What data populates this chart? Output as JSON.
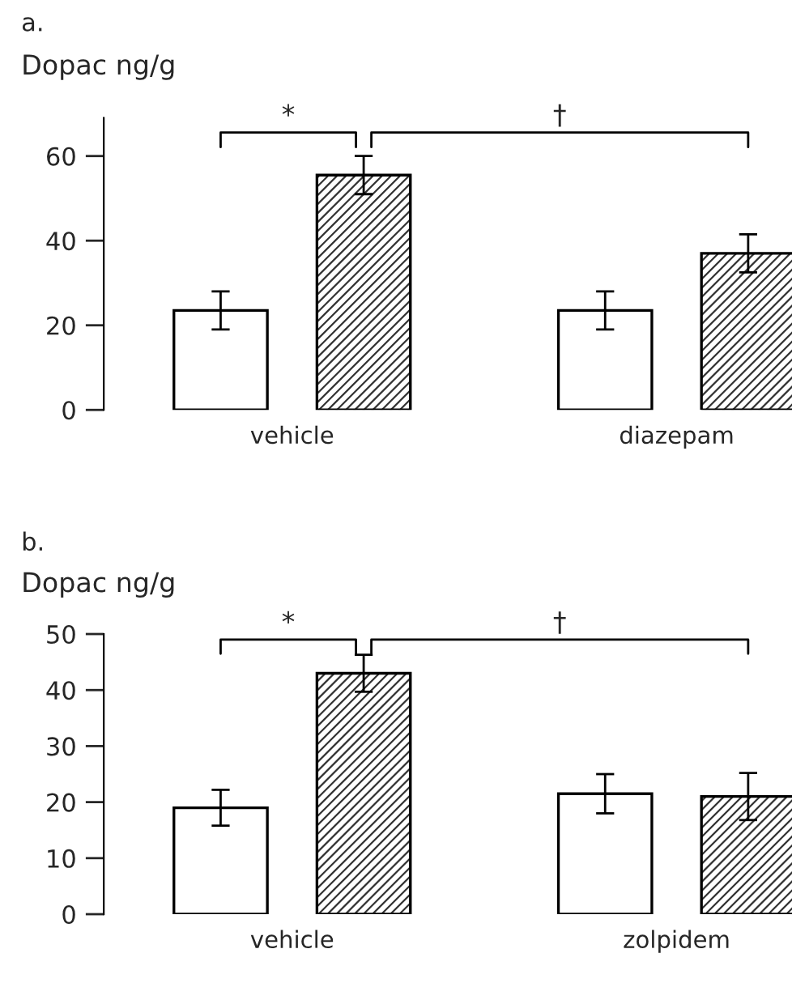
{
  "chart_data": [
    {
      "type": "bar",
      "title": "a.",
      "ylabel": "Dopac ng/g",
      "categories": [
        "vehicle",
        "diazepam"
      ],
      "series": [
        {
          "color": "#ffffff",
          "values": [
            23.5,
            23.5
          ],
          "errors": [
            4.5,
            4.5
          ]
        },
        {
          "color": "#333333",
          "values": [
            55.5,
            37
          ],
          "errors": [
            4.5,
            4.5
          ]
        }
      ],
      "ylim": [
        0,
        69
      ],
      "yticks": [
        0,
        20,
        40,
        60
      ],
      "grid": false,
      "legend": false,
      "annotations": [
        "*",
        "†"
      ]
    },
    {
      "type": "bar",
      "title": "b.",
      "ylabel": "Dopac ng/g",
      "categories": [
        "vehicle",
        "zolpidem"
      ],
      "series": [
        {
          "color": "#ffffff",
          "values": [
            19,
            21.5
          ],
          "errors": [
            3.2,
            3.5
          ]
        },
        {
          "color": "#333333",
          "values": [
            43,
            21
          ],
          "errors": [
            3.3,
            4.2
          ]
        }
      ],
      "ylim": [
        0,
        50
      ],
      "yticks": [
        0,
        10,
        20,
        30,
        40,
        50
      ],
      "grid": false,
      "legend": false,
      "annotations": [
        "*",
        "†"
      ]
    }
  ]
}
